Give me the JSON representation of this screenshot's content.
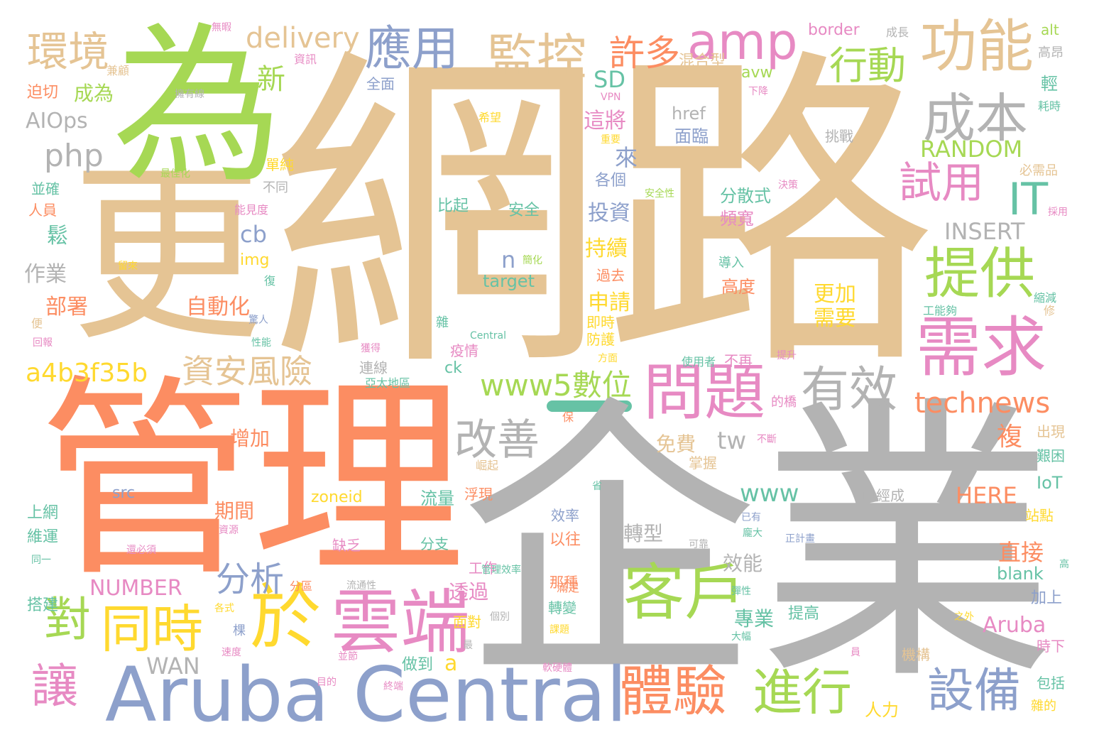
{
  "palette": {
    "tan": "#e5c494",
    "grey": "#b3b3b3",
    "orange": "#fc8d62",
    "green": "#a6d854",
    "blue": "#8da0cb",
    "pink": "#e78ac3",
    "yellow": "#ffd92f",
    "teal": "#66c2a5"
  },
  "words": [
    {
      "text": "網路",
      "c": "tan"
    },
    {
      "text": "企業",
      "c": "grey"
    },
    {
      "text": "管理",
      "c": "orange"
    },
    {
      "text": "更",
      "c": "tan"
    },
    {
      "text": "為",
      "c": "green"
    },
    {
      "text": "Aruba Central",
      "c": "blue"
    },
    {
      "text": "雲端",
      "c": "pink"
    },
    {
      "text": "於",
      "c": "yellow"
    },
    {
      "text": "客戶",
      "c": "green"
    },
    {
      "text": "問題",
      "c": "pink"
    },
    {
      "text": "體驗",
      "c": "orange"
    },
    {
      "text": "需求",
      "c": "pink"
    },
    {
      "text": "提供",
      "c": "green"
    },
    {
      "text": "成本",
      "c": "grey"
    },
    {
      "text": "功能",
      "c": "tan"
    },
    {
      "text": "監控",
      "c": "tan"
    },
    {
      "text": "應用",
      "c": "blue"
    },
    {
      "text": "amp",
      "c": "pink"
    },
    {
      "text": "許多",
      "c": "orange"
    },
    {
      "text": "環境",
      "c": "tan"
    },
    {
      "text": "delivery",
      "c": "tan"
    },
    {
      "text": "行動",
      "c": "green"
    },
    {
      "text": "有效",
      "c": "grey"
    },
    {
      "text": "改善",
      "c": "grey"
    },
    {
      "text": "同時",
      "c": "yellow"
    },
    {
      "text": "對",
      "c": "green"
    },
    {
      "text": "讓",
      "c": "pink"
    },
    {
      "text": "進行",
      "c": "green"
    },
    {
      "text": "設備",
      "c": "blue"
    },
    {
      "text": "試用",
      "c": "pink"
    },
    {
      "text": "IT",
      "c": "teal"
    },
    {
      "text": "資安風險",
      "c": "tan"
    },
    {
      "text": "www5數位",
      "c": "green"
    },
    {
      "text": "technews",
      "c": "orange"
    },
    {
      "text": "a4b3f35b",
      "c": "yellow"
    },
    {
      "text": "分析",
      "c": "blue"
    },
    {
      "text": "php",
      "c": "grey"
    },
    {
      "text": "AIOps",
      "c": "grey"
    },
    {
      "text": "成為",
      "c": "green"
    },
    {
      "text": "新",
      "c": "green"
    },
    {
      "text": "www",
      "c": "teal"
    },
    {
      "text": "RANDOM",
      "c": "green"
    },
    {
      "text": "INSERT",
      "c": "grey"
    },
    {
      "text": "SD",
      "c": "teal"
    },
    {
      "text": "cb",
      "c": "blue"
    },
    {
      "text": "自動化",
      "c": "orange"
    },
    {
      "text": "部署",
      "c": "orange"
    },
    {
      "text": "作業",
      "c": "grey"
    },
    {
      "text": "鬆",
      "c": "teal"
    },
    {
      "text": "投資",
      "c": "blue"
    },
    {
      "text": "這將",
      "c": "pink"
    },
    {
      "text": "持續",
      "c": "yellow"
    },
    {
      "text": "申請",
      "c": "yellow"
    },
    {
      "text": "來",
      "c": "blue"
    },
    {
      "text": "更加",
      "c": "yellow"
    },
    {
      "text": "需要",
      "c": "yellow"
    },
    {
      "text": "直接",
      "c": "orange"
    },
    {
      "text": "複",
      "c": "orange"
    },
    {
      "text": "Aruba",
      "c": "pink"
    },
    {
      "text": "HERE",
      "c": "orange"
    },
    {
      "text": "NUMBER",
      "c": "pink"
    },
    {
      "text": "WAN",
      "c": "grey"
    },
    {
      "text": "tw",
      "c": "grey"
    },
    {
      "text": "a",
      "c": "yellow"
    },
    {
      "text": "n",
      "c": "blue"
    },
    {
      "text": "免費",
      "c": "tan"
    },
    {
      "text": "增加",
      "c": "orange"
    },
    {
      "text": "期間",
      "c": "orange"
    },
    {
      "text": "轉型",
      "c": "grey"
    },
    {
      "text": "效能",
      "c": "grey"
    },
    {
      "text": "專業",
      "c": "teal"
    },
    {
      "text": "提高",
      "c": "teal"
    },
    {
      "text": "人力",
      "c": "yellow"
    },
    {
      "text": "做到",
      "c": "teal"
    },
    {
      "text": "透過",
      "c": "pink"
    },
    {
      "text": "分散式",
      "c": "teal"
    },
    {
      "text": "頻寬",
      "c": "pink"
    },
    {
      "text": "高度",
      "c": "orange"
    },
    {
      "text": "混合型",
      "c": "tan"
    },
    {
      "text": "border",
      "c": "pink"
    },
    {
      "text": "href",
      "c": "grey"
    },
    {
      "text": "面臨",
      "c": "blue"
    },
    {
      "text": "比起",
      "c": "teal"
    },
    {
      "text": "安全",
      "c": "teal"
    },
    {
      "text": "各個",
      "c": "blue"
    },
    {
      "text": "img",
      "c": "yellow"
    },
    {
      "text": "target",
      "c": "teal"
    },
    {
      "text": "src",
      "c": "blue"
    },
    {
      "text": "zoneid",
      "c": "yellow"
    },
    {
      "text": "流量",
      "c": "teal"
    },
    {
      "text": "blank",
      "c": "teal"
    },
    {
      "text": "IoT",
      "c": "teal"
    },
    {
      "text": "avw",
      "c": "green"
    },
    {
      "text": "alt",
      "c": "green"
    },
    {
      "text": "ck",
      "c": "teal"
    },
    {
      "text": "上網",
      "c": "teal"
    },
    {
      "text": "維運",
      "c": "teal"
    },
    {
      "text": "搭建",
      "c": "teal"
    },
    {
      "text": "迫切",
      "c": "orange"
    },
    {
      "text": "並確",
      "c": "teal"
    },
    {
      "text": "人員",
      "c": "orange"
    },
    {
      "text": "全面",
      "c": "blue"
    },
    {
      "text": "挑戰",
      "c": "grey"
    },
    {
      "text": "疫情",
      "c": "pink"
    },
    {
      "text": "連線",
      "c": "grey"
    },
    {
      "text": "過去",
      "c": "orange"
    },
    {
      "text": "即時",
      "c": "yellow"
    },
    {
      "text": "防護",
      "c": "yellow"
    },
    {
      "text": "掌握",
      "c": "tan"
    },
    {
      "text": "浮現",
      "c": "orange"
    },
    {
      "text": "缺乏",
      "c": "pink"
    },
    {
      "text": "分支",
      "c": "teal"
    },
    {
      "text": "以往",
      "c": "orange"
    },
    {
      "text": "那種",
      "c": "orange"
    },
    {
      "text": "效率",
      "c": "blue"
    },
    {
      "text": "轉變",
      "c": "teal"
    },
    {
      "text": "工作",
      "c": "pink"
    },
    {
      "text": "面對",
      "c": "yellow"
    },
    {
      "text": "出現",
      "c": "tan"
    },
    {
      "text": "艱困",
      "c": "teal"
    },
    {
      "text": "站點",
      "c": "yellow"
    },
    {
      "text": "加上",
      "c": "blue"
    },
    {
      "text": "時下",
      "c": "pink"
    },
    {
      "text": "包括",
      "c": "teal"
    },
    {
      "text": "雜的",
      "c": "yellow"
    },
    {
      "text": "機構",
      "c": "tan"
    },
    {
      "text": "已經成",
      "c": "grey"
    },
    {
      "text": "不再",
      "c": "pink"
    },
    {
      "text": "使用者",
      "c": "teal"
    },
    {
      "text": "高昂",
      "c": "grey"
    },
    {
      "text": "輕",
      "c": "teal"
    },
    {
      "text": "耗時",
      "c": "teal"
    },
    {
      "text": "必需品",
      "c": "tan"
    },
    {
      "text": "單純",
      "c": "yellow"
    },
    {
      "text": "不同",
      "c": "grey"
    },
    {
      "text": "能見度",
      "c": "pink"
    },
    {
      "text": "資訊",
      "c": "pink"
    },
    {
      "text": "無暇",
      "c": "pink"
    },
    {
      "text": "成長",
      "c": "grey"
    },
    {
      "text": "兼顧",
      "c": "tan"
    },
    {
      "text": "擁有線",
      "c": "grey"
    },
    {
      "text": "最佳化",
      "c": "green"
    },
    {
      "text": "希望",
      "c": "yellow"
    },
    {
      "text": "重要",
      "c": "yellow"
    },
    {
      "text": "VPN",
      "c": "pink"
    },
    {
      "text": "下降",
      "c": "pink"
    },
    {
      "text": "安全性",
      "c": "green"
    },
    {
      "text": "決策",
      "c": "pink"
    },
    {
      "text": "採用",
      "c": "pink"
    },
    {
      "text": "導入",
      "c": "teal"
    },
    {
      "text": "工能夠",
      "c": "teal"
    },
    {
      "text": "縮減",
      "c": "teal"
    },
    {
      "text": "修",
      "c": "tan"
    },
    {
      "text": "提升",
      "c": "pink"
    },
    {
      "text": "亞太地區",
      "c": "teal"
    },
    {
      "text": "的橋",
      "c": "pink"
    },
    {
      "text": "不斷",
      "c": "pink"
    },
    {
      "text": "Central",
      "c": "teal"
    },
    {
      "text": "獲得",
      "c": "pink"
    },
    {
      "text": "雜",
      "c": "teal"
    },
    {
      "text": "驚人",
      "c": "blue"
    },
    {
      "text": "性能",
      "c": "teal"
    },
    {
      "text": "復",
      "c": "teal"
    },
    {
      "text": "便",
      "c": "tan"
    },
    {
      "text": "回報",
      "c": "pink"
    },
    {
      "text": "留來",
      "c": "yellow"
    },
    {
      "text": "簡化",
      "c": "green"
    },
    {
      "text": "方面",
      "c": "yellow"
    },
    {
      "text": "保",
      "c": "orange"
    },
    {
      "text": "崛起",
      "c": "tan"
    },
    {
      "text": "資源",
      "c": "pink"
    },
    {
      "text": "還必須",
      "c": "pink"
    },
    {
      "text": "同一",
      "c": "teal"
    },
    {
      "text": "分區",
      "c": "orange"
    },
    {
      "text": "流通性",
      "c": "grey"
    },
    {
      "text": "各式",
      "c": "yellow"
    },
    {
      "text": "棵",
      "c": "blue"
    },
    {
      "text": "速度",
      "c": "pink"
    },
    {
      "text": "並節",
      "c": "pink"
    },
    {
      "text": "目的",
      "c": "pink"
    },
    {
      "text": "終端",
      "c": "pink"
    },
    {
      "text": "軟硬體",
      "c": "pink"
    },
    {
      "text": "管理效率",
      "c": "teal"
    },
    {
      "text": "滿足",
      "c": "orange"
    },
    {
      "text": "課題",
      "c": "yellow"
    },
    {
      "text": "個別",
      "c": "grey"
    },
    {
      "text": "最",
      "c": "grey"
    },
    {
      "text": "省",
      "c": "teal"
    },
    {
      "text": "已有",
      "c": "blue"
    },
    {
      "text": "龐大",
      "c": "teal"
    },
    {
      "text": "正計畫",
      "c": "blue"
    },
    {
      "text": "可靠",
      "c": "grey"
    },
    {
      "text": "彈性",
      "c": "teal"
    },
    {
      "text": "大幅",
      "c": "teal"
    },
    {
      "text": "之外",
      "c": "yellow"
    },
    {
      "text": "高",
      "c": "teal"
    },
    {
      "text": "員",
      "c": "pink"
    }
  ]
}
